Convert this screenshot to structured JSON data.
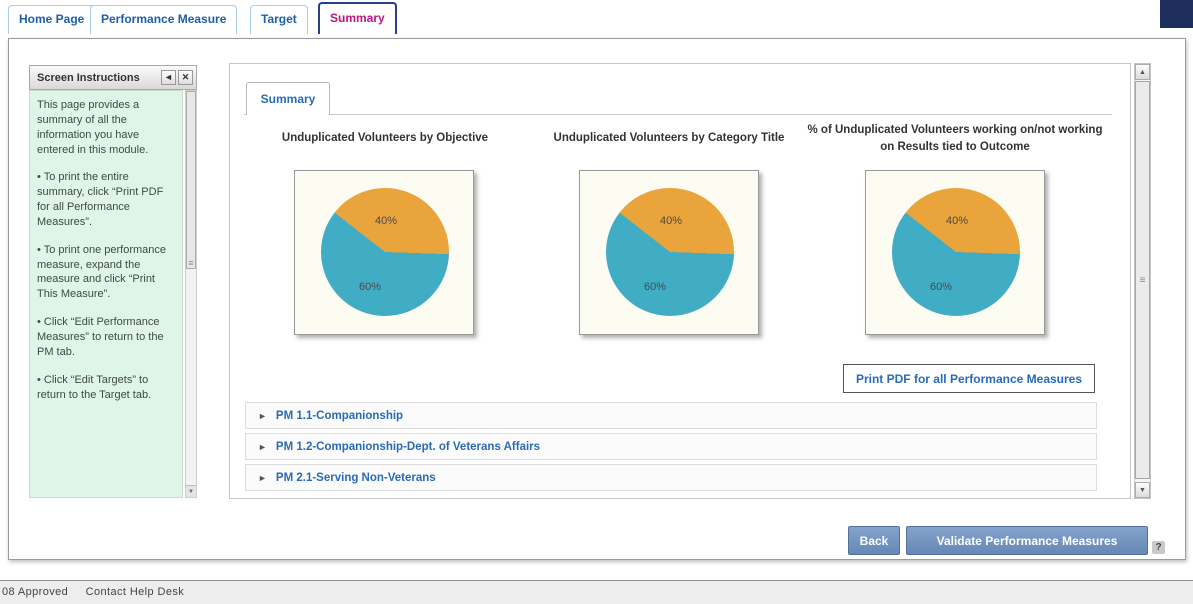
{
  "colors": {
    "tab_link_blue": "#1F5FA9",
    "active_tab_magenta": "#C01580",
    "header_corner_navy": "#1E2F5E",
    "pie_orange": "#E9A43C",
    "pie_teal": "#41ADC5",
    "instructions_bg_mint": "#DFF5E6",
    "button_steel_blue": "#7391BD",
    "link_blue": "#2A6BB5"
  },
  "icons": {
    "collapse": "◄",
    "close": "✕",
    "expand": "►",
    "scroll_up": "▲",
    "scroll_down": "▼",
    "grip": "≡",
    "help": "?"
  },
  "tabs": [
    {
      "label": "Home Page",
      "active": false
    },
    {
      "label": "Performance Measure",
      "active": false
    },
    {
      "label": "Target",
      "active": false
    },
    {
      "label": "Summary",
      "active": true
    }
  ],
  "instructions": {
    "title": "Screen Instructions",
    "paragraphs": [
      "This page provides a summary of all the information you have entered in this module.",
      "• To print the entire summary, click “Print PDF for all Performance Measures”.",
      "• To print one performance measure, expand the measure and click “Print This Measure”.",
      "• Click “Edit Performance Measures” to return to the PM tab.",
      "• Click “Edit Targets” to return to the Target tab."
    ]
  },
  "content": {
    "subtab_label": "Summary",
    "print_button_label": "Print PDF for all Performance Measures",
    "pm_rows": [
      {
        "label": "PM 1.1-Companionship"
      },
      {
        "label": "PM 1.2-Companionship-Dept. of Veterans Affairs"
      },
      {
        "label": "PM 2.1-Serving Non-Veterans"
      }
    ]
  },
  "chart_data": [
    {
      "type": "pie",
      "title": "Unduplicated Volunteers by Objective",
      "slices": [
        {
          "label": "40%",
          "value": 40,
          "color": "#E9A43C"
        },
        {
          "label": "60%",
          "value": 60,
          "color": "#41ADC5"
        }
      ]
    },
    {
      "type": "pie",
      "title": "Unduplicated Volunteers by Category Title",
      "slices": [
        {
          "label": "40%",
          "value": 40,
          "color": "#E9A43C"
        },
        {
          "label": "60%",
          "value": 60,
          "color": "#41ADC5"
        }
      ]
    },
    {
      "type": "pie",
      "title": "% of Unduplicated Volunteers working on/not working on Results tied to Outcome",
      "slices": [
        {
          "label": "40%",
          "value": 40,
          "color": "#E9A43C"
        },
        {
          "label": "60%",
          "value": 60,
          "color": "#41ADC5"
        }
      ]
    }
  ],
  "actions": {
    "back_label": "Back",
    "validate_label": "Validate Performance Measures"
  },
  "footer": {
    "left_text": "08 Approved",
    "help_desk_text": "Contact Help Desk"
  }
}
